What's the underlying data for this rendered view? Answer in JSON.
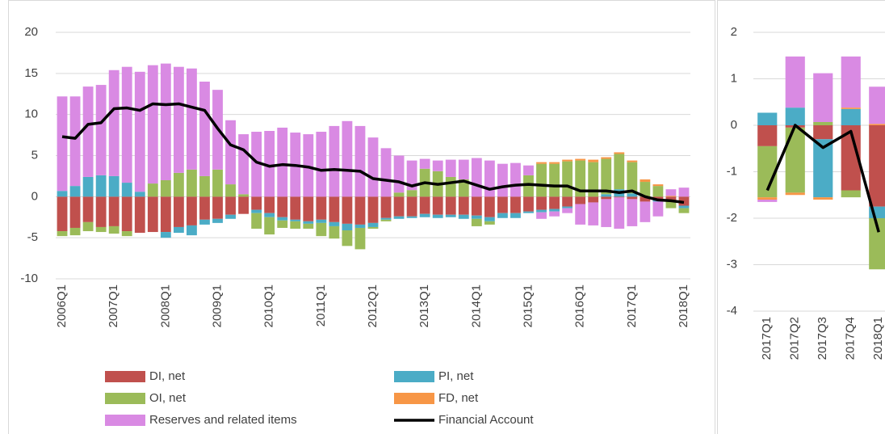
{
  "chart_data": [
    {
      "type": "bar",
      "stacked": true,
      "categories": [
        "2006Q1",
        null,
        null,
        null,
        "2007Q1",
        null,
        null,
        null,
        "2008Q1",
        null,
        null,
        null,
        "2009Q1",
        null,
        null,
        null,
        "2010Q1",
        null,
        null,
        null,
        "2011Q1",
        null,
        null,
        null,
        "2012Q1",
        null,
        null,
        null,
        "2013Q1",
        null,
        null,
        null,
        "2014Q1",
        null,
        null,
        null,
        "2015Q1",
        null,
        null,
        null,
        "2016Q1",
        null,
        null,
        null,
        "2017Q1",
        null,
        null,
        null,
        "2018Q1"
      ],
      "ylim": [
        -10,
        20
      ],
      "yticks": [
        -10,
        -5,
        0,
        5,
        10,
        15,
        20
      ],
      "grid": true,
      "series": [
        {
          "name": "DI, net",
          "color": "#c0504d",
          "values": [
            -4.2,
            -3.8,
            -3.1,
            -3.7,
            -3.6,
            -4.2,
            -4.4,
            -4.3,
            -4.3,
            -3.7,
            -3.5,
            -2.8,
            -2.7,
            -2.2,
            -2.1,
            -1.6,
            -2.0,
            -2.5,
            -2.8,
            -3.0,
            -2.8,
            -3.1,
            -3.3,
            -3.4,
            -3.2,
            -2.6,
            -2.4,
            -2.4,
            -2.1,
            -2.2,
            -2.2,
            -2.2,
            -2.3,
            -2.5,
            -2.0,
            -2.0,
            -1.8,
            -1.6,
            -1.5,
            -1.2,
            -0.9,
            -0.7,
            -0.3,
            -0.1,
            -0.3,
            -0.6,
            -0.4,
            -0.6,
            -1.1
          ]
        },
        {
          "name": "PI, net",
          "color": "#4bacc6",
          "values": [
            0.7,
            1.3,
            2.4,
            2.6,
            2.5,
            1.7,
            0.6,
            0,
            -0.7,
            -0.7,
            -1.2,
            -0.6,
            -0.5,
            -0.5,
            0,
            -0.4,
            -0.5,
            -0.4,
            -0.2,
            -0.3,
            -0.4,
            -0.5,
            -0.8,
            -0.4,
            -0.5,
            -0.2,
            -0.3,
            -0.2,
            -0.4,
            -0.4,
            -0.3,
            -0.5,
            -0.4,
            -0.5,
            -0.6,
            -0.6,
            -0.2,
            -0.3,
            -0.3,
            -0.2,
            0,
            0,
            0.3,
            0.9,
            0.4,
            0,
            -0.2,
            0,
            -0.3
          ]
        },
        {
          "name": "OI, net",
          "color": "#9bbb59",
          "values": [
            -0.6,
            -0.9,
            -1.1,
            -0.6,
            -0.9,
            -0.6,
            0,
            1.6,
            2.0,
            2.9,
            3.3,
            2.5,
            3.3,
            1.5,
            0.3,
            -1.9,
            -2.1,
            -0.9,
            -0.9,
            -0.6,
            -1.6,
            -1.5,
            -1.9,
            -2.6,
            -0.2,
            -0.2,
            0.5,
            0.8,
            3.4,
            3.1,
            2.4,
            2.1,
            -0.9,
            -0.4,
            0,
            0,
            2.6,
            4.0,
            4.0,
            4.3,
            4.4,
            4.2,
            4.3,
            4.3,
            3.8,
            1.8,
            1.3,
            -0.8,
            -0.6
          ]
        },
        {
          "name": "FD, net",
          "color": "#f79646",
          "values": [
            0,
            0,
            0,
            0,
            0,
            0,
            0,
            0,
            0,
            0,
            0,
            0,
            0,
            0,
            0,
            0,
            0,
            0,
            0,
            0,
            0,
            0,
            0,
            0,
            0,
            0,
            0,
            0,
            0,
            0,
            0,
            0,
            0,
            0,
            0,
            0,
            0,
            0.2,
            0.2,
            0.2,
            0.2,
            0.3,
            0.2,
            0.2,
            0.2,
            0.3,
            0.2,
            0.1,
            0
          ]
        },
        {
          "name": "Reserves and related items",
          "color": "#d98ae3",
          "values": [
            11.5,
            10.9,
            11.0,
            11.0,
            12.9,
            14.1,
            14.6,
            14.4,
            14.2,
            12.9,
            12.3,
            11.5,
            9.7,
            7.8,
            7.3,
            7.9,
            8.0,
            8.4,
            7.8,
            7.6,
            7.9,
            8.6,
            9.2,
            8.6,
            7.2,
            5.9,
            4.5,
            3.6,
            1.2,
            1.3,
            2.1,
            2.4,
            4.7,
            4.4,
            4.0,
            4.1,
            1.2,
            -0.8,
            -0.6,
            -0.6,
            -2.5,
            -2.8,
            -3.4,
            -3.8,
            -3.3,
            -2.5,
            -1.8,
            0.8,
            1.1
          ]
        },
        {
          "name": "Financial Account",
          "type": "line",
          "color": "#000000",
          "values": [
            7.3,
            7.1,
            8.8,
            9.0,
            10.7,
            10.8,
            10.5,
            11.3,
            11.2,
            11.3,
            10.9,
            10.5,
            8.3,
            6.3,
            5.7,
            4.2,
            3.7,
            3.9,
            3.8,
            3.6,
            3.2,
            3.3,
            3.2,
            3.1,
            2.2,
            2.0,
            1.8,
            1.3,
            1.7,
            1.5,
            1.7,
            1.9,
            1.4,
            0.9,
            1.2,
            1.4,
            1.5,
            1.4,
            1.3,
            1.3,
            0.7,
            0.7,
            0.7,
            0.5,
            0.7,
            0.0,
            -0.4,
            -0.5,
            -0.7
          ]
        }
      ]
    },
    {
      "type": "bar",
      "stacked": true,
      "categories": [
        "2017Q1",
        "2017Q2",
        "2017Q3",
        "2017Q4",
        "2018Q1"
      ],
      "ylim": [
        -4,
        2
      ],
      "yticks": [
        -4,
        -3,
        -2,
        -1,
        0,
        1,
        2
      ],
      "grid": true,
      "series": [
        {
          "color": "#c0504d",
          "values": [
            -0.45,
            -0.05,
            -0.3,
            -1.4,
            -1.75
          ]
        },
        {
          "color": "#4bacc6",
          "values": [
            0.27,
            0.38,
            -1.25,
            0.35,
            -0.25
          ]
        },
        {
          "color": "#9bbb59",
          "values": [
            -1.1,
            -1.4,
            0.07,
            -0.15,
            -1.1
          ]
        },
        {
          "color": "#f79646",
          "values": [
            -0.05,
            -0.05,
            -0.05,
            0.03,
            0.03
          ]
        },
        {
          "color": "#d98ae3",
          "values": [
            -0.05,
            1.1,
            1.05,
            1.1,
            0.8
          ]
        },
        {
          "type": "line",
          "color": "#000000",
          "values": [
            -1.4,
            0.0,
            -0.48,
            -0.13,
            -2.3
          ]
        }
      ]
    }
  ]
}
